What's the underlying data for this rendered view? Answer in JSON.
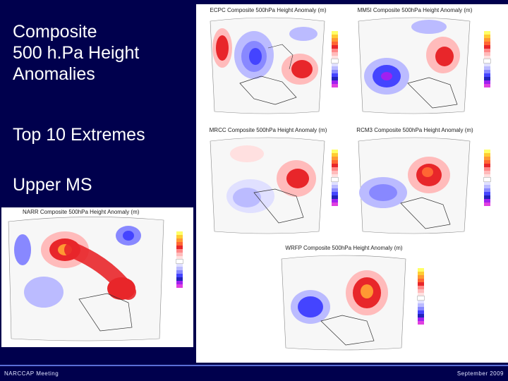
{
  "slide": {
    "title_lines": [
      "Composite",
      "500 h.Pa Height",
      "Anomalies"
    ],
    "subtitle1": "Top 10 Extremes",
    "subtitle2": "Upper MS"
  },
  "panels": [
    {
      "id": "ecpc",
      "title": "ECPC Composite 500hPa Height Anomaly (m)"
    },
    {
      "id": "mm5i",
      "title": "MM5I Composite 500hPa Height Anomaly (m)"
    },
    {
      "id": "mrcc",
      "title": "MRCC Composite 500hPa Height Anomaly (m)"
    },
    {
      "id": "rcm3",
      "title": "RCM3 Composite 500hPa Height Anomaly (m)"
    },
    {
      "id": "narr",
      "title": "NARR Composite 500hPa Height Anomaly (m)"
    },
    {
      "id": "wrfp",
      "title": "WRFP Composite 500hPa Height Anomaly (m)"
    }
  ],
  "colorbar": {
    "colors": [
      "#ffff66",
      "#ffcc33",
      "#ff9933",
      "#ff6633",
      "#e8262a",
      "#ff8888",
      "#ffbbbb",
      "#ffe0e0",
      "#ffffff",
      "#e0e0ff",
      "#bbbbff",
      "#8888ff",
      "#4444ff",
      "#2222bb",
      "#a020f0",
      "#e040e0"
    ]
  },
  "footer": {
    "left": "NARCCAP Meeting",
    "right": "September 2009"
  }
}
